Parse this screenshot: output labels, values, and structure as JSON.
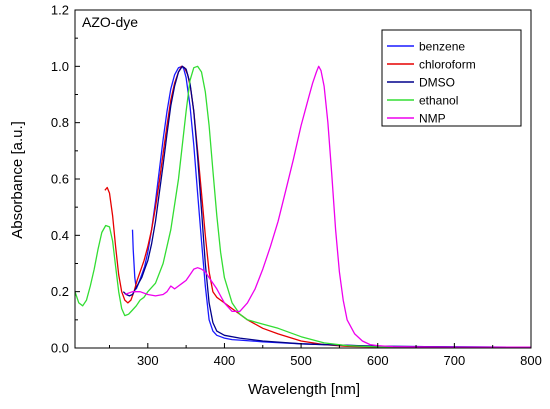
{
  "chart_data": {
    "type": "line",
    "annotation": "AZO-dye",
    "xlabel": "Wavelength [nm]",
    "ylabel": "Absorbance [a.u.]",
    "xlim": [
      205,
      800
    ],
    "ylim": [
      0,
      1.2
    ],
    "xticks": [
      300,
      400,
      500,
      600,
      700,
      800
    ],
    "yticks": [
      0.0,
      0.2,
      0.4,
      0.6,
      0.8,
      1.0,
      1.2
    ],
    "xtick_labels": [
      "300",
      "400",
      "500",
      "600",
      "700",
      "800"
    ],
    "ytick_labels": [
      "0.0",
      "0.2",
      "0.4",
      "0.6",
      "0.8",
      "1.0",
      "1.2"
    ],
    "grid": false,
    "legend_position": "top-right",
    "series": [
      {
        "name": "benzene",
        "color": "#1a1aff",
        "x": [
          280,
          281,
          283,
          285,
          288,
          292,
          296,
          300,
          305,
          310,
          315,
          320,
          325,
          330,
          335,
          340,
          345,
          347,
          350,
          355,
          360,
          365,
          370,
          375,
          380,
          385,
          390,
          395,
          400,
          410,
          420,
          450,
          500,
          550,
          600,
          700,
          800
        ],
        "y": [
          0.42,
          0.35,
          0.25,
          0.21,
          0.23,
          0.26,
          0.29,
          0.34,
          0.42,
          0.52,
          0.63,
          0.74,
          0.84,
          0.92,
          0.97,
          0.995,
          1.0,
          0.99,
          0.96,
          0.86,
          0.72,
          0.55,
          0.38,
          0.22,
          0.1,
          0.06,
          0.045,
          0.04,
          0.035,
          0.03,
          0.028,
          0.022,
          0.015,
          0.01,
          0.006,
          0.004,
          0.003
        ]
      },
      {
        "name": "chloroform",
        "color": "#e60000",
        "x": [
          244,
          247,
          250,
          254,
          258,
          262,
          266,
          270,
          274,
          278,
          282,
          286,
          290,
          295,
          300,
          305,
          310,
          315,
          320,
          325,
          330,
          335,
          340,
          344,
          348,
          352,
          356,
          360,
          365,
          370,
          375,
          380,
          385,
          390,
          395,
          400,
          410,
          420,
          430,
          450,
          470,
          500,
          530,
          560,
          600,
          650,
          700,
          800
        ],
        "y": [
          0.56,
          0.57,
          0.55,
          0.47,
          0.36,
          0.26,
          0.2,
          0.17,
          0.16,
          0.17,
          0.2,
          0.24,
          0.27,
          0.31,
          0.36,
          0.42,
          0.5,
          0.59,
          0.69,
          0.79,
          0.88,
          0.94,
          0.98,
          1.0,
          0.995,
          0.97,
          0.92,
          0.84,
          0.7,
          0.55,
          0.4,
          0.27,
          0.2,
          0.18,
          0.17,
          0.16,
          0.14,
          0.12,
          0.1,
          0.07,
          0.05,
          0.025,
          0.012,
          0.006,
          0.004,
          0.003,
          0.002,
          0.001
        ]
      },
      {
        "name": "DMSO",
        "color": "#00008b",
        "x": [
          268,
          272,
          276,
          280,
          284,
          288,
          292,
          296,
          300,
          305,
          310,
          315,
          320,
          325,
          330,
          335,
          340,
          345,
          350,
          355,
          360,
          365,
          370,
          375,
          380,
          385,
          390,
          400,
          420,
          450,
          500,
          600,
          700,
          800
        ],
        "y": [
          0.2,
          0.19,
          0.185,
          0.19,
          0.21,
          0.23,
          0.25,
          0.28,
          0.31,
          0.37,
          0.45,
          0.55,
          0.65,
          0.76,
          0.86,
          0.93,
          0.98,
          1.0,
          0.99,
          0.94,
          0.84,
          0.68,
          0.49,
          0.3,
          0.16,
          0.09,
          0.06,
          0.045,
          0.035,
          0.025,
          0.015,
          0.006,
          0.004,
          0.003
        ]
      },
      {
        "name": "ethanol",
        "color": "#33dd33",
        "x": [
          205,
          210,
          215,
          220,
          225,
          230,
          235,
          240,
          245,
          250,
          254,
          258,
          262,
          266,
          270,
          275,
          280,
          285,
          290,
          295,
          300,
          310,
          320,
          330,
          340,
          350,
          355,
          360,
          365,
          370,
          375,
          380,
          385,
          390,
          395,
          400,
          410,
          420,
          430,
          450,
          470,
          500,
          530,
          560,
          600,
          650,
          700,
          800
        ],
        "y": [
          0.2,
          0.16,
          0.15,
          0.17,
          0.22,
          0.28,
          0.35,
          0.41,
          0.435,
          0.43,
          0.38,
          0.29,
          0.2,
          0.14,
          0.115,
          0.12,
          0.135,
          0.15,
          0.17,
          0.18,
          0.2,
          0.23,
          0.3,
          0.42,
          0.6,
          0.84,
          0.95,
          0.995,
          1.0,
          0.98,
          0.91,
          0.79,
          0.63,
          0.47,
          0.34,
          0.25,
          0.16,
          0.12,
          0.1,
          0.085,
          0.07,
          0.04,
          0.018,
          0.008,
          0.004,
          0.002,
          0.002,
          0.001
        ]
      },
      {
        "name": "NMP",
        "color": "#ee00ee",
        "x": [
          270,
          280,
          290,
          300,
          310,
          320,
          325,
          330,
          335,
          340,
          345,
          350,
          355,
          360,
          365,
          370,
          375,
          380,
          390,
          400,
          410,
          420,
          430,
          440,
          450,
          460,
          470,
          480,
          490,
          500,
          505,
          510,
          515,
          520,
          523,
          526,
          530,
          535,
          540,
          545,
          550,
          555,
          560,
          570,
          580,
          590,
          600,
          620,
          650,
          700,
          800
        ],
        "y": [
          0.19,
          0.2,
          0.2,
          0.19,
          0.185,
          0.19,
          0.2,
          0.22,
          0.21,
          0.22,
          0.23,
          0.24,
          0.26,
          0.28,
          0.285,
          0.28,
          0.27,
          0.25,
          0.21,
          0.16,
          0.13,
          0.13,
          0.16,
          0.21,
          0.28,
          0.36,
          0.45,
          0.56,
          0.67,
          0.79,
          0.84,
          0.89,
          0.94,
          0.98,
          1.0,
          0.985,
          0.93,
          0.8,
          0.62,
          0.42,
          0.27,
          0.17,
          0.1,
          0.05,
          0.025,
          0.012,
          0.008,
          0.005,
          0.004,
          0.003,
          0.003
        ]
      }
    ]
  }
}
